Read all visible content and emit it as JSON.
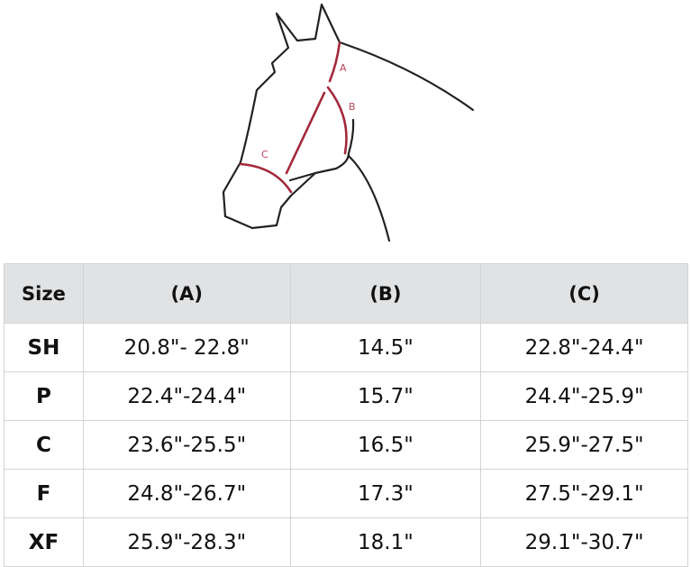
{
  "diagram": {
    "labels": {
      "a": "A",
      "b": "B",
      "c": "C"
    },
    "measure_color": "#a3283a"
  },
  "table": {
    "headers": [
      "Size",
      "(A)",
      "(B)",
      "(C)"
    ],
    "rows": [
      [
        "SH",
        "20.8\"- 22.8\"",
        "14.5\"",
        "22.8\"-24.4\""
      ],
      [
        "P",
        "22.4\"-24.4\"",
        "15.7\"",
        "24.4\"-25.9\""
      ],
      [
        "C",
        "23.6\"-25.5\"",
        "16.5\"",
        "25.9\"-27.5\""
      ],
      [
        "F",
        "24.8\"-26.7\"",
        "17.3\"",
        "27.5\"-29.1\""
      ],
      [
        "XF",
        "25.9\"-28.3\"",
        "18.1\"",
        "29.1\"-30.7\""
      ]
    ]
  }
}
